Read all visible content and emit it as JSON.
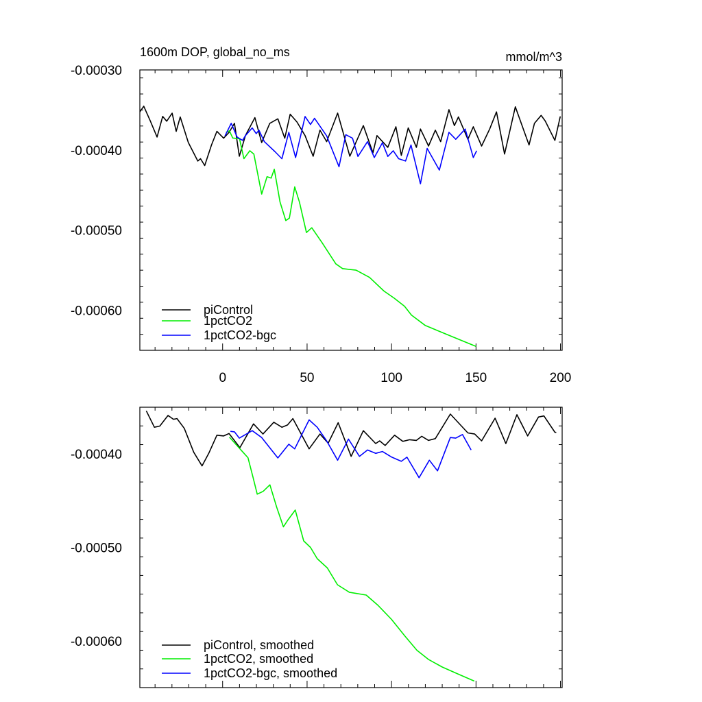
{
  "chart_data": [
    {
      "type": "line",
      "title": "1600m DOP, global_no_ms",
      "units": "mmol/m^3",
      "xlim": [
        -49,
        201
      ],
      "ylim": [
        -0.00065,
        -0.0003
      ],
      "yticks": [
        -0.0003,
        -0.0004,
        -0.0005,
        -0.0006
      ],
      "ytick_labels": [
        "-0.00030",
        "-0.00040",
        "-0.00050",
        "-0.00060"
      ],
      "xticks": [
        0,
        50,
        100,
        150,
        200
      ],
      "xtick_labels": [
        "0",
        "50",
        "100",
        "150",
        "200"
      ],
      "legend_position": "bottom-left",
      "series": [
        {
          "name": "piControl",
          "color": "#000000",
          "points": [
            [
              -49,
              -0.0003524
            ],
            [
              -46.7,
              -0.0003453
            ],
            [
              -42.8,
              -0.0003638
            ],
            [
              -38.8,
              -0.0003838
            ],
            [
              -35.5,
              -0.000358
            ],
            [
              -33.1,
              -0.000364
            ],
            [
              -29.9,
              -0.000354
            ],
            [
              -27.5,
              -0.0003767
            ],
            [
              -25.1,
              -0.0003587
            ],
            [
              -20.3,
              -0.0003906
            ],
            [
              -14.7,
              -0.0004137
            ],
            [
              -13.1,
              -0.0004108
            ],
            [
              -10.6,
              -0.0004194
            ],
            [
              -6.6,
              -0.0003937
            ],
            [
              -3.4,
              -0.0003767
            ],
            [
              0.6,
              -0.0003852
            ],
            [
              3.8,
              -0.000378
            ],
            [
              7,
              -0.0003667
            ],
            [
              9.9,
              -0.0004077
            ],
            [
              13.5,
              -0.000382
            ],
            [
              19.1,
              -0.0003596
            ],
            [
              23.1,
              -0.0003906
            ],
            [
              27.9,
              -0.0003667
            ],
            [
              32.7,
              -0.000361
            ],
            [
              36.8,
              -0.0003852
            ],
            [
              40,
              -0.0003553
            ],
            [
              44,
              -0.000365
            ],
            [
              48.8,
              -0.000382
            ],
            [
              53.6,
              -0.0004077
            ],
            [
              57.6,
              -0.0003752
            ],
            [
              61.6,
              -0.0003895
            ],
            [
              68.1,
              -0.0003539
            ],
            [
              75.3,
              -0.0004077
            ],
            [
              83.3,
              -0.0003695
            ],
            [
              89,
              -0.0004034
            ],
            [
              91.4,
              -0.000382
            ],
            [
              97.8,
              -0.0003966
            ],
            [
              102.6,
              -0.0003709
            ],
            [
              105.8,
              -0.0004066
            ],
            [
              109.9,
              -0.0003724
            ],
            [
              114.7,
              -0.0003966
            ],
            [
              117.1,
              -0.0003738
            ],
            [
              121.9,
              -0.000395
            ],
            [
              125.9,
              -0.0003752
            ],
            [
              129.1,
              -0.0003895
            ],
            [
              134,
              -0.0003496
            ],
            [
              137.2,
              -0.0003695
            ],
            [
              139.6,
              -0.0003587
            ],
            [
              145.2,
              -0.0003866
            ],
            [
              148.4,
              -0.0003709
            ],
            [
              153.3,
              -0.000395
            ],
            [
              158.1,
              -0.0003738
            ],
            [
              162.1,
              -0.0003524
            ],
            [
              166.9,
              -0.000405
            ],
            [
              173.3,
              -0.000346
            ],
            [
              181.4,
              -0.0003937
            ],
            [
              184.6,
              -0.0003667
            ],
            [
              188.6,
              -0.0003567
            ],
            [
              191,
              -0.0003638
            ],
            [
              196.7,
              -0.000388
            ],
            [
              199.9,
              -0.000358
            ]
          ]
        },
        {
          "name": "1pctCO2",
          "color": "#00ee00",
          "points": [
            [
              2,
              -0.000378
            ],
            [
              4,
              -0.000376
            ],
            [
              6,
              -0.000385
            ],
            [
              10,
              -0.000386
            ],
            [
              12.6,
              -0.0004108
            ],
            [
              16.1,
              -0.0004009
            ],
            [
              18.5,
              -0.000405
            ],
            [
              23.1,
              -0.000455
            ],
            [
              26.3,
              -0.0004333
            ],
            [
              28.7,
              -0.000435
            ],
            [
              30.6,
              -0.000424
            ],
            [
              34,
              -0.000465
            ],
            [
              37.4,
              -0.000488
            ],
            [
              39.5,
              -0.000485
            ],
            [
              42.7,
              -0.000446
            ],
            [
              45.5,
              -0.000465
            ],
            [
              49.6,
              -0.000503
            ],
            [
              52.8,
              -0.000497
            ],
            [
              59,
              -0.000516
            ],
            [
              67,
              -0.000542
            ],
            [
              71,
              -0.000548
            ],
            [
              79,
              -0.00055
            ],
            [
              87,
              -0.000559
            ],
            [
              95.5,
              -0.000576
            ],
            [
              101.6,
              -0.000585
            ],
            [
              107.7,
              -0.000595
            ],
            [
              111.8,
              -0.000606
            ],
            [
              120,
              -0.000619
            ],
            [
              128,
              -0.000626
            ],
            [
              136,
              -0.000633
            ],
            [
              144,
              -0.00064
            ],
            [
              150,
              -0.000645
            ]
          ]
        },
        {
          "name": "1pctCO2-bgc",
          "color": "#0000ff",
          "points": [
            [
              1.4,
              -0.0003823
            ],
            [
              5.1,
              -0.0003667
            ],
            [
              8.6,
              -0.0003838
            ],
            [
              11.8,
              -0.000388
            ],
            [
              13.5,
              -0.000382
            ],
            [
              17.5,
              -0.0003724
            ],
            [
              19.9,
              -0.0003795
            ],
            [
              21.5,
              -0.0003752
            ],
            [
              24.7,
              -0.0003895
            ],
            [
              31.1,
              -0.0004023
            ],
            [
              35.1,
              -0.0004108
            ],
            [
              39.2,
              -0.000378
            ],
            [
              43.2,
              -0.0004094
            ],
            [
              48.8,
              -0.0003581
            ],
            [
              52,
              -0.0003681
            ],
            [
              54.4,
              -0.0003604
            ],
            [
              61.6,
              -0.0003823
            ],
            [
              68.9,
              -0.0004208
            ],
            [
              72.9,
              -0.0003809
            ],
            [
              76.9,
              -0.0003852
            ],
            [
              80.1,
              -0.000408
            ],
            [
              85.8,
              -0.0003895
            ],
            [
              89.8,
              -0.0004094
            ],
            [
              94.6,
              -0.0003909
            ],
            [
              97.8,
              -0.000408
            ],
            [
              101,
              -0.0004009
            ],
            [
              104.2,
              -0.0004108
            ],
            [
              108.3,
              -0.0004137
            ],
            [
              111.5,
              -0.0003937
            ],
            [
              117.1,
              -0.0004421
            ],
            [
              121.1,
              -0.000398
            ],
            [
              128.3,
              -0.000425
            ],
            [
              134,
              -0.000378
            ],
            [
              138,
              -0.0003866
            ],
            [
              143.6,
              -0.0003738
            ],
            [
              148.4,
              -0.0004094
            ],
            [
              150.4,
              -0.0004009
            ]
          ]
        }
      ]
    },
    {
      "type": "line",
      "xlim": [
        -49,
        201
      ],
      "ylim": [
        -0.00065,
        -0.00035
      ],
      "yticks": [
        -0.0004,
        -0.0005,
        -0.0006
      ],
      "ytick_labels": [
        "-0.00040",
        "-0.00050",
        "-0.00060"
      ],
      "xticks": [
        0,
        50,
        100,
        150,
        200
      ],
      "xtick_labels": [],
      "legend_position": "bottom-left",
      "series": [
        {
          "name": "piControl, smoothed",
          "color": "#000000",
          "points": [
            [
              -45.2,
              -0.0003539
            ],
            [
              -40.4,
              -0.0003714
            ],
            [
              -37.2,
              -0.0003702
            ],
            [
              -32.3,
              -0.0003588
            ],
            [
              -29.1,
              -0.0003629
            ],
            [
              -27,
              -0.0003622
            ],
            [
              -22.7,
              -0.0003726
            ],
            [
              -17.1,
              -0.0003982
            ],
            [
              -12.2,
              -0.0004128
            ],
            [
              -8.2,
              -0.0003994
            ],
            [
              -3.4,
              -0.0003799
            ],
            [
              0.6,
              -0.0003807
            ],
            [
              3.8,
              -0.0003782
            ],
            [
              10.2,
              -0.0003933
            ],
            [
              18.3,
              -0.0003678
            ],
            [
              23.9,
              -0.0003787
            ],
            [
              30.3,
              -0.0003661
            ],
            [
              35.1,
              -0.0003714
            ],
            [
              38.4,
              -0.000369
            ],
            [
              41.6,
              -0.0003622
            ],
            [
              51.2,
              -0.0003945
            ],
            [
              57.6,
              -0.0003787
            ],
            [
              62.5,
              -0.0003885
            ],
            [
              68.4,
              -0.0003666
            ],
            [
              76.1,
              -0.0004026
            ],
            [
              83.3,
              -0.0003751
            ],
            [
              90.6,
              -0.0003889
            ],
            [
              93,
              -0.000386
            ],
            [
              96.2,
              -0.0003909
            ],
            [
              101.8,
              -0.0003799
            ],
            [
              106.7,
              -0.0003865
            ],
            [
              110.7,
              -0.0003848
            ],
            [
              114.7,
              -0.0003855
            ],
            [
              117.9,
              -0.0003811
            ],
            [
              121.9,
              -0.0003855
            ],
            [
              125.9,
              -0.0003836
            ],
            [
              134.8,
              -0.0003573
            ],
            [
              145.2,
              -0.0003775
            ],
            [
              149.2,
              -0.0003787
            ],
            [
              153.3,
              -0.000386
            ],
            [
              161.3,
              -0.0003617
            ],
            [
              167.7,
              -0.0003889
            ],
            [
              174.2,
              -0.000358
            ],
            [
              180.6,
              -0.0003807
            ],
            [
              187,
              -0.0003605
            ],
            [
              190.2,
              -0.0003593
            ],
            [
              196.7,
              -0.0003768
            ],
            [
              197.5,
              -0.000377
            ]
          ]
        },
        {
          "name": "1pctCO2, smoothed",
          "color": "#00ee00",
          "points": [
            [
              4,
              -0.000382
            ],
            [
              8,
              -0.00039
            ],
            [
              12,
              -0.000398
            ],
            [
              15,
              -0.000404
            ],
            [
              18,
              -0.000425
            ],
            [
              20.5,
              -0.000443
            ],
            [
              24,
              -0.00044
            ],
            [
              28,
              -0.000433
            ],
            [
              32,
              -0.000457
            ],
            [
              36,
              -0.000478
            ],
            [
              38.5,
              -0.000471
            ],
            [
              43,
              -0.00046
            ],
            [
              48,
              -0.000493
            ],
            [
              52,
              -0.0005
            ],
            [
              56,
              -0.000512
            ],
            [
              62,
              -0.000522
            ],
            [
              68,
              -0.00054
            ],
            [
              75,
              -0.000548
            ],
            [
              85,
              -0.000551
            ],
            [
              92,
              -0.000562
            ],
            [
              100,
              -0.000577
            ],
            [
              108,
              -0.000595
            ],
            [
              115,
              -0.00061
            ],
            [
              122,
              -0.00062
            ],
            [
              130,
              -0.000628
            ],
            [
              140,
              -0.000636
            ],
            [
              149,
              -0.000643
            ]
          ]
        },
        {
          "name": "1pctCO2-bgc, smoothed",
          "color": "#0000ff",
          "points": [
            [
              4.6,
              -0.0003758
            ],
            [
              7,
              -0.0003763
            ],
            [
              9.9,
              -0.0003831
            ],
            [
              17.5,
              -0.0003751
            ],
            [
              23.1,
              -0.0003824
            ],
            [
              32.7,
              -0.0004043
            ],
            [
              39.2,
              -0.0003896
            ],
            [
              42.7,
              -0.0003945
            ],
            [
              51.2,
              -0.0003636
            ],
            [
              56,
              -0.0003714
            ],
            [
              61.6,
              -0.000386
            ],
            [
              68.1,
              -0.0004067
            ],
            [
              74.5,
              -0.0003841
            ],
            [
              81,
              -0.0004026
            ],
            [
              85.8,
              -0.0003958
            ],
            [
              90.6,
              -0.0003994
            ],
            [
              94.6,
              -0.0003974
            ],
            [
              100.2,
              -0.0004035
            ],
            [
              105.8,
              -0.0004079
            ],
            [
              109.1,
              -0.0004035
            ],
            [
              116.3,
              -0.0004254
            ],
            [
              122.4,
              -0.0004067
            ],
            [
              127.2,
              -0.0004181
            ],
            [
              134.8,
              -0.0003824
            ],
            [
              138,
              -0.0003831
            ],
            [
              142,
              -0.0003792
            ],
            [
              147.1,
              -0.0003958
            ]
          ]
        }
      ]
    }
  ]
}
